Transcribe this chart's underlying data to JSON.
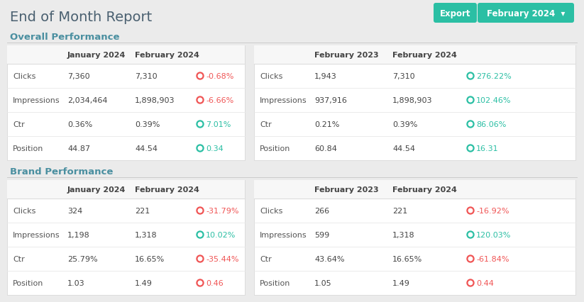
{
  "title": "End of Month Report",
  "bg_color": "#ebebeb",
  "white": "#ffffff",
  "teal": "#2bbfa4",
  "dark_text": "#444444",
  "light_text": "#888888",
  "section_title_color": "#4a8fa0",
  "export_btn": "Export",
  "period_btn": "February 2024  ▾",
  "sections": [
    {
      "title": "Overall Performance",
      "left_table": {
        "col1": "January 2024",
        "col2": "February 2024",
        "rows": [
          {
            "label": "Clicks",
            "v1": "7,360",
            "v2": "7,310",
            "delta": "-0.68%",
            "positive": false
          },
          {
            "label": "Impressions",
            "v1": "2,034,464",
            "v2": "1,898,903",
            "delta": "-6.66%",
            "positive": false
          },
          {
            "label": "Ctr",
            "v1": "0.36%",
            "v2": "0.39%",
            "delta": "7.01%",
            "positive": true
          },
          {
            "label": "Position",
            "v1": "44.87",
            "v2": "44.54",
            "delta": "0.34",
            "positive": true
          }
        ]
      },
      "right_table": {
        "col1": "February 2023",
        "col2": "February 2024",
        "rows": [
          {
            "label": "Clicks",
            "v1": "1,943",
            "v2": "7,310",
            "delta": "276.22%",
            "positive": true
          },
          {
            "label": "Impressions",
            "v1": "937,916",
            "v2": "1,898,903",
            "delta": "102.46%",
            "positive": true
          },
          {
            "label": "Ctr",
            "v1": "0.21%",
            "v2": "0.39%",
            "delta": "86.06%",
            "positive": true
          },
          {
            "label": "Position",
            "v1": "60.84",
            "v2": "44.54",
            "delta": "16.31",
            "positive": true
          }
        ]
      }
    },
    {
      "title": "Brand Performance",
      "left_table": {
        "col1": "January 2024",
        "col2": "February 2024",
        "rows": [
          {
            "label": "Clicks",
            "v1": "324",
            "v2": "221",
            "delta": "-31.79%",
            "positive": false
          },
          {
            "label": "Impressions",
            "v1": "1,198",
            "v2": "1,318",
            "delta": "10.02%",
            "positive": true
          },
          {
            "label": "Ctr",
            "v1": "25.79%",
            "v2": "16.65%",
            "delta": "-35.44%",
            "positive": false
          },
          {
            "label": "Position",
            "v1": "1.03",
            "v2": "1.49",
            "delta": "0.46",
            "positive": false
          }
        ]
      },
      "right_table": {
        "col1": "February 2023",
        "col2": "February 2024",
        "rows": [
          {
            "label": "Clicks",
            "v1": "266",
            "v2": "221",
            "delta": "-16.92%",
            "positive": false
          },
          {
            "label": "Impressions",
            "v1": "599",
            "v2": "1,318",
            "delta": "120.03%",
            "positive": true
          },
          {
            "label": "Ctr",
            "v1": "43.64%",
            "v2": "16.65%",
            "delta": "-61.84%",
            "positive": false
          },
          {
            "label": "Position",
            "v1": "1.05",
            "v2": "1.49",
            "delta": "0.44",
            "positive": false
          }
        ]
      }
    }
  ],
  "figw": 8.23,
  "figh": 4.27,
  "dpi": 100
}
